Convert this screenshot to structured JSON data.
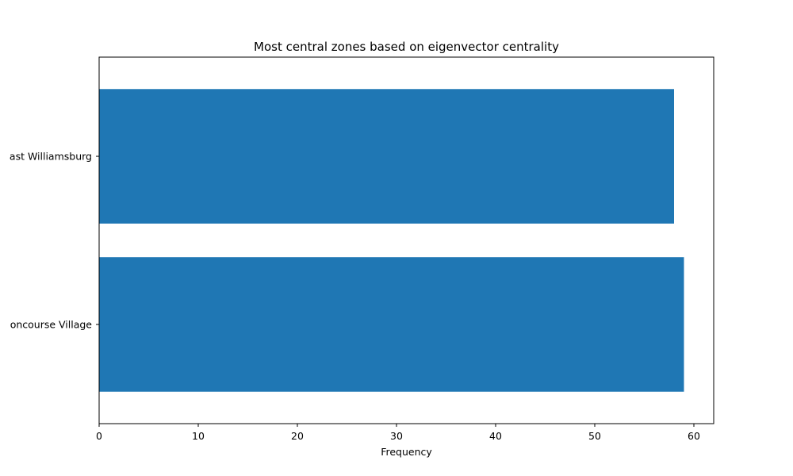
{
  "chart_data": {
    "type": "bar",
    "orientation": "horizontal",
    "title": "Most central zones based on eigenvector centrality",
    "xlabel": "Frequency",
    "ylabel": "",
    "categories": [
      "Concourse Village",
      "East Williamsburg"
    ],
    "visible_category_labels": [
      "oncourse Village",
      "ast Williamsburg"
    ],
    "values": [
      59,
      58
    ],
    "xlim": [
      0,
      62
    ],
    "xticks": [
      0,
      10,
      20,
      30,
      40,
      50,
      60
    ],
    "bar_color": "#1f77b4",
    "grid": false,
    "legend": "none"
  }
}
